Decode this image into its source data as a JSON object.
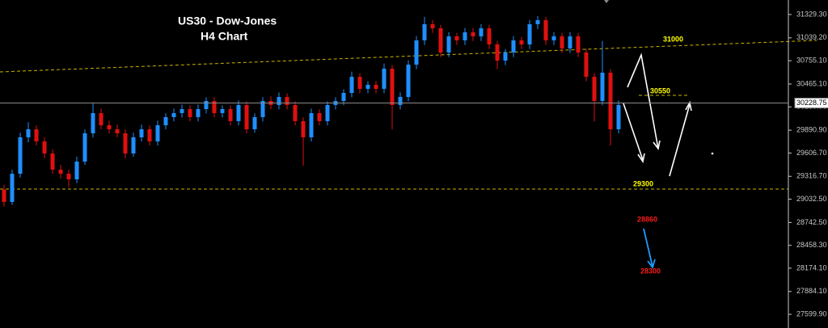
{
  "chart_data": {
    "type": "candlestick",
    "title": "US30 - Dow-Jones",
    "subtitle": "H4 Chart",
    "up_color": "#1e8fff",
    "down_color": "#e01010",
    "ylim": [
      27430,
      31510
    ],
    "yticks": [
      {
        "value": 31329.3,
        "label": "31329.30"
      },
      {
        "value": 31039.2,
        "label": "31039.20"
      },
      {
        "value": 30755.1,
        "label": "30755.10"
      },
      {
        "value": 30465.1,
        "label": "30465.10"
      },
      {
        "value": 30180.9,
        "label": "30180.90"
      },
      {
        "value": 29890.9,
        "label": "29890.90"
      },
      {
        "value": 29606.7,
        "label": "29606.70"
      },
      {
        "value": 29316.7,
        "label": "29316.70"
      },
      {
        "value": 29032.5,
        "label": "29032.50"
      },
      {
        "value": 28742.5,
        "label": "28742.50"
      },
      {
        "value": 28458.3,
        "label": "28458.30"
      },
      {
        "value": 28174.1,
        "label": "28174.10"
      },
      {
        "value": 27884.1,
        "label": "27884.10"
      },
      {
        "value": 27599.9,
        "label": "27599.90"
      }
    ],
    "current_price": 30228.75,
    "annotations": [
      {
        "text": "31000",
        "color": "#ffff00"
      },
      {
        "text": "30550",
        "color": "#ffff00"
      },
      {
        "text": "29300",
        "color": "#ffff00"
      },
      {
        "text": "28860",
        "color": "#ff1a1a"
      },
      {
        "text": "28300",
        "color": "#ff1a1a"
      }
    ],
    "candles": [
      [
        29150,
        29210,
        28940,
        28998
      ],
      [
        28998,
        29400,
        28960,
        29349
      ],
      [
        29349,
        29860,
        29300,
        29802
      ],
      [
        29802,
        29990,
        29740,
        29902
      ],
      [
        29902,
        29950,
        29700,
        29751
      ],
      [
        29751,
        29800,
        29540,
        29601
      ],
      [
        29601,
        29650,
        29350,
        29400
      ],
      [
        29400,
        29460,
        29290,
        29349
      ],
      [
        29349,
        29400,
        29180,
        29279
      ],
      [
        29279,
        29560,
        29230,
        29500
      ],
      [
        29500,
        29900,
        29460,
        29852
      ],
      [
        29852,
        30230,
        29800,
        30103
      ],
      [
        30103,
        30160,
        29900,
        29952
      ],
      [
        29952,
        30010,
        29850,
        29902
      ],
      [
        29902,
        29960,
        29800,
        29852
      ],
      [
        29852,
        29900,
        29540,
        29601
      ],
      [
        29601,
        29860,
        29560,
        29802
      ],
      [
        29802,
        29960,
        29750,
        29902
      ],
      [
        29902,
        29950,
        29700,
        29751
      ],
      [
        29751,
        30010,
        29700,
        29952
      ],
      [
        29952,
        30100,
        29900,
        30053
      ],
      [
        30053,
        30160,
        30000,
        30103
      ],
      [
        30103,
        30210,
        30050,
        30153
      ],
      [
        30153,
        30200,
        30000,
        30053
      ],
      [
        30053,
        30210,
        30000,
        30153
      ],
      [
        30153,
        30300,
        30100,
        30254
      ],
      [
        30254,
        30300,
        30050,
        30103
      ],
      [
        30103,
        30200,
        30050,
        30153
      ],
      [
        30153,
        30200,
        29950,
        30003
      ],
      [
        30003,
        30260,
        29950,
        30204
      ],
      [
        30204,
        30250,
        29850,
        29902
      ],
      [
        29902,
        30100,
        29860,
        30053
      ],
      [
        30053,
        30300,
        30000,
        30254
      ],
      [
        30254,
        30310,
        30150,
        30204
      ],
      [
        30204,
        30360,
        30150,
        30304
      ],
      [
        30304,
        30350,
        30150,
        30204
      ],
      [
        30204,
        30250,
        29950,
        30003
      ],
      [
        30003,
        30050,
        29450,
        29802
      ],
      [
        29802,
        30160,
        29750,
        30103
      ],
      [
        30103,
        30150,
        29950,
        30003
      ],
      [
        30003,
        30250,
        29950,
        30204
      ],
      [
        30204,
        30300,
        30150,
        30254
      ],
      [
        30254,
        30400,
        30200,
        30354
      ],
      [
        30354,
        30620,
        30300,
        30555
      ],
      [
        30555,
        30600,
        30350,
        30405
      ],
      [
        30405,
        30500,
        30350,
        30455
      ],
      [
        30455,
        30500,
        30350,
        30405
      ],
      [
        30405,
        30720,
        30350,
        30656
      ],
      [
        30656,
        30700,
        29900,
        30204
      ],
      [
        30204,
        30360,
        30150,
        30304
      ],
      [
        30304,
        30760,
        30250,
        30706
      ],
      [
        30706,
        31060,
        30650,
        31008
      ],
      [
        31008,
        31300,
        30950,
        31209
      ],
      [
        31209,
        31260,
        31100,
        31158
      ],
      [
        31158,
        31200,
        30800,
        30857
      ],
      [
        30857,
        31110,
        30800,
        31058
      ],
      [
        31058,
        31100,
        30950,
        31008
      ],
      [
        31008,
        31160,
        30950,
        31108
      ],
      [
        31108,
        31160,
        31000,
        31058
      ],
      [
        31058,
        31210,
        31000,
        31158
      ],
      [
        31158,
        31200,
        30900,
        30957
      ],
      [
        30957,
        31000,
        30650,
        30756
      ],
      [
        30756,
        30900,
        30700,
        30857
      ],
      [
        30857,
        31060,
        30800,
        31008
      ],
      [
        31008,
        31050,
        30900,
        30957
      ],
      [
        30957,
        31260,
        30900,
        31209
      ],
      [
        31209,
        31310,
        31150,
        31259
      ],
      [
        31259,
        31300,
        30950,
        31008
      ],
      [
        31008,
        31110,
        30950,
        31058
      ],
      [
        31058,
        31100,
        30850,
        30907
      ],
      [
        30907,
        31110,
        30850,
        31058
      ],
      [
        31058,
        31100,
        30800,
        30857
      ],
      [
        30857,
        30900,
        30500,
        30555
      ],
      [
        30555,
        30600,
        30000,
        30254
      ],
      [
        30254,
        31000,
        30200,
        30606
      ],
      [
        30606,
        30650,
        29700,
        29902
      ],
      [
        29902,
        30260,
        29850,
        30204
      ]
    ]
  }
}
